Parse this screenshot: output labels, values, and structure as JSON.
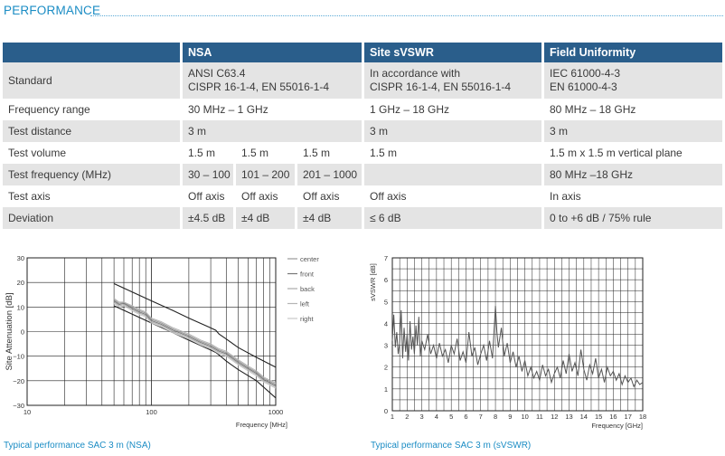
{
  "section_title": "PERFORMANCE",
  "table": {
    "headers": [
      "",
      "NSA",
      "Site sVSWR",
      "Field Uniformity"
    ],
    "rows": {
      "standard": {
        "label": "Standard",
        "nsa": [
          "ANSI C63.4",
          "CISPR 16-1-4, EN 55016-1-4"
        ],
        "svswr": [
          "In accordance with",
          "CISPR 16-1-4, EN 55016-1-4"
        ],
        "field": [
          "IEC 61000-4-3",
          "EN 61000-4-3"
        ]
      },
      "frequency_range": {
        "label": "Frequency range",
        "nsa": "30 MHz – 1 GHz",
        "svswr": "1 GHz – 18 GHz",
        "field": "80 MHz – 18 GHz"
      },
      "test_distance": {
        "label": "Test distance",
        "nsa": "3 m",
        "svswr": "3 m",
        "field": "3 m"
      },
      "test_volume": {
        "label": "Test volume",
        "nsa": [
          "1.5 m",
          "1.5 m",
          "1.5 m"
        ],
        "svswr": "1.5 m",
        "field": "1.5 m x 1.5 m vertical plane"
      },
      "test_frequency": {
        "label": "Test frequency (MHz)",
        "nsa": [
          "30 – 100",
          "101 – 200",
          "201 – 1000"
        ],
        "svswr": "",
        "field": "80 MHz –18 GHz"
      },
      "test_axis": {
        "label": "Test axis",
        "nsa": [
          "Off axis",
          "Off axis",
          "Off axis"
        ],
        "svswr": "Off axis",
        "field": "In axis"
      },
      "deviation": {
        "label": "Deviation",
        "nsa": [
          "±4.5 dB",
          "±4 dB",
          "±4 dB"
        ],
        "svswr": "≤ 6 dB",
        "field": "0 to +6 dB / 75% rule"
      }
    }
  },
  "captions": {
    "nsa": "Typical performance SAC 3 m (NSA)",
    "svswr": "Typical performance SAC 3 m (sVSWR)"
  },
  "colors": {
    "accent": "#1a8cc4",
    "header_bg": "#2a5e8b",
    "row_shade": "#e4e4e4"
  },
  "chart_data": [
    {
      "type": "line",
      "xscale": "log",
      "xlim": [
        10,
        1000
      ],
      "ylim": [
        -30,
        30
      ],
      "xticks": [
        10,
        100,
        1000
      ],
      "yticks": [
        30,
        20,
        10,
        0,
        -10,
        -20,
        -30
      ],
      "xlabel": "Frequency [MHz]",
      "ylabel": "Site Attenuation [dB]",
      "legend": [
        "center",
        "front",
        "back",
        "left",
        "right"
      ],
      "legend_position": "right",
      "series": [
        {
          "role": "limit",
          "color": "#222222",
          "x": [
            50,
            100,
            150,
            200,
            300,
            330,
            350,
            400,
            500,
            700,
            1000
          ],
          "y": [
            19.5,
            12.5,
            8.5,
            5.5,
            1.5,
            0.5,
            -1,
            -3,
            -6.5,
            -10.5,
            -14.5
          ]
        },
        {
          "role": "limit",
          "color": "#222222",
          "x": [
            50,
            100,
            150,
            200,
            300,
            330,
            350,
            400,
            500,
            700,
            1000
          ],
          "y": [
            10.5,
            3.5,
            -0.5,
            -3.5,
            -7.5,
            -8.5,
            -9.5,
            -12,
            -15.5,
            -20,
            -27
          ]
        },
        {
          "name": "center",
          "color": "#9a9a9a",
          "x": [
            50,
            55,
            60,
            70,
            80,
            90,
            100,
            120,
            150,
            200,
            250,
            300,
            350,
            400,
            500,
            600,
            700,
            800,
            1000
          ],
          "y": [
            13,
            11.5,
            11.8,
            10,
            8.5,
            7.5,
            5,
            3.5,
            1,
            -1.5,
            -4,
            -5.5,
            -7.5,
            -8.5,
            -12,
            -14.5,
            -16.5,
            -19,
            -21.5
          ]
        },
        {
          "name": "front",
          "color": "#777777",
          "x": [
            50,
            55,
            60,
            70,
            80,
            90,
            100,
            120,
            150,
            200,
            250,
            300,
            350,
            400,
            500,
            600,
            700,
            800,
            1000
          ],
          "y": [
            12.5,
            11,
            11.5,
            9.5,
            8,
            7,
            4.5,
            3,
            0.5,
            -2,
            -4.5,
            -6,
            -8,
            -9,
            -12.5,
            -15,
            -17,
            -19.5,
            -22
          ]
        },
        {
          "name": "back",
          "color": "#aaaaaa",
          "x": [
            50,
            55,
            60,
            70,
            80,
            90,
            100,
            120,
            150,
            200,
            250,
            300,
            350,
            400,
            500,
            600,
            700,
            800,
            1000
          ],
          "y": [
            12,
            10.5,
            11,
            9,
            7.5,
            6.5,
            4,
            2.5,
            0,
            -2.5,
            -5,
            -6.5,
            -8.5,
            -9.5,
            -13,
            -15.5,
            -17.5,
            -20,
            -22.5
          ]
        },
        {
          "name": "left",
          "color": "#b5b5b5",
          "x": [
            50,
            55,
            60,
            70,
            80,
            90,
            100,
            120,
            150,
            200,
            250,
            300,
            350,
            400,
            500,
            600,
            700,
            800,
            1000
          ],
          "y": [
            13.5,
            12,
            12,
            10.5,
            9,
            8,
            5.5,
            4,
            1.5,
            -1,
            -3.5,
            -5,
            -7,
            -8,
            -11.5,
            -14,
            -16,
            -18.5,
            -21
          ]
        },
        {
          "name": "right",
          "color": "#c8c8c8",
          "x": [
            50,
            55,
            60,
            70,
            80,
            90,
            100,
            120,
            150,
            200,
            250,
            300,
            350,
            400,
            500,
            600,
            700,
            800,
            1000
          ],
          "y": [
            11.5,
            10,
            10.5,
            8.5,
            7,
            6,
            3.5,
            2,
            -0.5,
            -3,
            -5.5,
            -7,
            -9,
            -10,
            -13.5,
            -16,
            -18,
            -20.5,
            -23
          ]
        }
      ]
    },
    {
      "type": "line",
      "xlim": [
        1,
        18
      ],
      "ylim": [
        0,
        7
      ],
      "xticks": [
        1,
        2,
        3,
        4,
        5,
        6,
        7,
        8,
        9,
        10,
        11,
        12,
        13,
        14,
        15,
        16,
        17,
        18
      ],
      "yticks": [
        0,
        1,
        2,
        3,
        4,
        5,
        6,
        7
      ],
      "xlabel": "Frequency [GHz]",
      "ylabel": "sVSWR [dB]",
      "series": [
        {
          "color": "#555555",
          "x": [
            1.0,
            1.1,
            1.2,
            1.3,
            1.4,
            1.5,
            1.6,
            1.7,
            1.8,
            1.9,
            2.0,
            2.1,
            2.2,
            2.3,
            2.4,
            2.5,
            2.6,
            2.7,
            2.8,
            2.9,
            3.0,
            3.2,
            3.4,
            3.6,
            3.8,
            4.0,
            4.2,
            4.4,
            4.6,
            4.8,
            5.0,
            5.2,
            5.4,
            5.6,
            5.8,
            6.0,
            6.2,
            6.4,
            6.6,
            6.8,
            7.0,
            7.2,
            7.4,
            7.6,
            7.8,
            8.0,
            8.1,
            8.2,
            8.4,
            8.6,
            8.8,
            9.0,
            9.2,
            9.4,
            9.6,
            9.8,
            10.0,
            10.2,
            10.4,
            10.6,
            10.8,
            11.0,
            11.2,
            11.4,
            11.6,
            11.8,
            12.0,
            12.2,
            12.4,
            12.6,
            12.8,
            13.0,
            13.2,
            13.4,
            13.6,
            13.8,
            14.0,
            14.2,
            14.4,
            14.6,
            14.8,
            15.0,
            15.2,
            15.4,
            15.6,
            15.8,
            16.0,
            16.2,
            16.4,
            16.6,
            16.8,
            17.0,
            17.2,
            17.4,
            17.6,
            17.8,
            18.0
          ],
          "y": [
            3.2,
            4.4,
            2.9,
            3.6,
            2.6,
            3.1,
            4.6,
            2.4,
            3.8,
            2.7,
            3.5,
            2.3,
            4.1,
            2.8,
            3.4,
            2.6,
            3.9,
            3.0,
            4.3,
            2.5,
            3.2,
            2.8,
            3.5,
            2.6,
            3.0,
            2.4,
            3.1,
            2.5,
            2.8,
            2.2,
            3.0,
            2.6,
            3.3,
            2.3,
            2.7,
            2.2,
            3.6,
            2.5,
            2.9,
            2.1,
            2.6,
            3.0,
            2.3,
            3.2,
            2.4,
            4.8,
            3.6,
            2.9,
            3.8,
            2.5,
            3.1,
            2.2,
            2.7,
            2.0,
            2.5,
            1.8,
            2.3,
            1.6,
            2.0,
            1.5,
            1.8,
            1.4,
            2.1,
            1.6,
            1.9,
            1.3,
            1.7,
            2.0,
            1.5,
            2.3,
            1.7,
            2.6,
            1.8,
            2.2,
            1.6,
            2.8,
            1.9,
            1.4,
            2.1,
            1.7,
            2.4,
            1.5,
            1.9,
            1.3,
            2.0,
            1.6,
            1.8,
            1.4,
            1.7,
            1.2,
            1.6,
            1.3,
            1.5,
            1.1,
            1.4,
            1.2,
            1.3
          ]
        }
      ]
    }
  ]
}
